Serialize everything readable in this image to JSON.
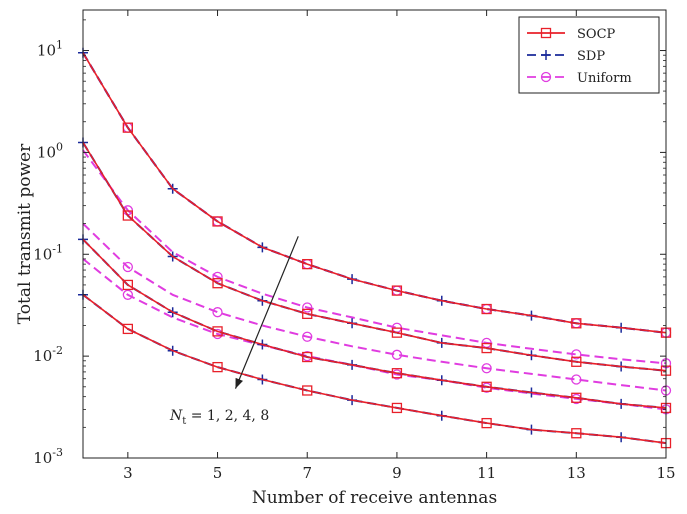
{
  "chart_data": {
    "type": "line",
    "xlabel": "Number of receive antennas",
    "ylabel": "Total transmit power",
    "xlim": [
      2,
      15
    ],
    "ylim": [
      0.001,
      25
    ],
    "yscale": "log",
    "grid": false,
    "legend_position": "top-right",
    "x": [
      2,
      3,
      4,
      5,
      6,
      7,
      8,
      9,
      10,
      11,
      12,
      13,
      14,
      15
    ],
    "x_tick_labels": [
      "3",
      "5",
      "7",
      "9",
      "11",
      "13",
      "15"
    ],
    "x_tick_values": [
      3,
      5,
      7,
      9,
      11,
      13,
      15
    ],
    "y_tick_labels": [
      {
        "base": "10",
        "exp": "1",
        "value": 10
      },
      {
        "base": "10",
        "exp": "0",
        "value": 1
      },
      {
        "base": "10",
        "exp": "-1",
        "value": 0.1
      },
      {
        "base": "10",
        "exp": "-2",
        "value": 0.01
      },
      {
        "base": "10",
        "exp": "-3",
        "value": 0.001
      }
    ],
    "legend": [
      {
        "name": "SOCP",
        "color": "#e8202a",
        "dash": "solid",
        "marker": "square"
      },
      {
        "name": "SDP",
        "color": "#1a2a9a",
        "dash": "dashed",
        "marker": "plus"
      },
      {
        "name": "Uniform",
        "color": "#e03ce0",
        "dash": "dashed",
        "marker": "circle"
      }
    ],
    "series": [
      {
        "method": "SOCP",
        "nt": 1,
        "values": [
          9.5,
          1.75,
          0.44,
          0.21,
          0.117,
          0.08,
          0.057,
          0.044,
          0.035,
          0.029,
          0.025,
          0.021,
          0.019,
          0.017
        ]
      },
      {
        "method": "SDP",
        "nt": 1,
        "values": [
          9.5,
          1.75,
          0.44,
          0.21,
          0.117,
          0.08,
          0.057,
          0.044,
          0.035,
          0.029,
          0.025,
          0.021,
          0.019,
          0.017
        ]
      },
      {
        "method": "Uniform",
        "nt": 1,
        "values": [
          9.5,
          1.75,
          0.44,
          0.21,
          0.117,
          0.08,
          0.057,
          0.044,
          0.035,
          0.029,
          0.025,
          0.021,
          0.019,
          0.017
        ]
      },
      {
        "method": "SOCP",
        "nt": 2,
        "values": [
          1.25,
          0.24,
          0.095,
          0.052,
          0.035,
          0.026,
          0.021,
          0.017,
          0.0135,
          0.012,
          0.0102,
          0.0088,
          0.0079,
          0.0072
        ]
      },
      {
        "method": "SDP",
        "nt": 2,
        "values": [
          1.25,
          0.24,
          0.095,
          0.052,
          0.035,
          0.026,
          0.021,
          0.017,
          0.0135,
          0.012,
          0.0102,
          0.0088,
          0.0079,
          0.0072
        ]
      },
      {
        "method": "Uniform",
        "nt": 2,
        "values": [
          1.05,
          0.27,
          0.105,
          0.06,
          0.041,
          0.03,
          0.024,
          0.019,
          0.016,
          0.0135,
          0.0118,
          0.0104,
          0.0093,
          0.0085
        ]
      },
      {
        "method": "SOCP",
        "nt": 4,
        "values": [
          0.14,
          0.05,
          0.027,
          0.0175,
          0.013,
          0.0098,
          0.0082,
          0.0068,
          0.0058,
          0.005,
          0.0044,
          0.0039,
          0.0034,
          0.0031
        ]
      },
      {
        "method": "SDP",
        "nt": 4,
        "values": [
          0.14,
          0.05,
          0.027,
          0.0175,
          0.013,
          0.0098,
          0.0082,
          0.0068,
          0.0058,
          0.005,
          0.0044,
          0.0039,
          0.0034,
          0.0031
        ]
      },
      {
        "method": "Uniform",
        "nt": 4,
        "values": [
          0.2,
          0.075,
          0.04,
          0.027,
          0.02,
          0.0155,
          0.0125,
          0.0103,
          0.0088,
          0.0076,
          0.0067,
          0.0059,
          0.0052,
          0.0046
        ]
      },
      {
        "method": "SOCP",
        "nt": 8,
        "values": [
          0.04,
          0.0185,
          0.0113,
          0.0078,
          0.0059,
          0.0046,
          0.0037,
          0.0031,
          0.0026,
          0.0022,
          0.0019,
          0.00175,
          0.0016,
          0.0014
        ]
      },
      {
        "method": "SDP",
        "nt": 8,
        "values": [
          0.04,
          0.0185,
          0.0113,
          0.0078,
          0.0059,
          0.0046,
          0.0037,
          0.0031,
          0.0026,
          0.0022,
          0.0019,
          0.00175,
          0.0016,
          0.0014
        ]
      },
      {
        "method": "Uniform",
        "nt": 8,
        "values": [
          0.09,
          0.04,
          0.024,
          0.0165,
          0.0128,
          0.01,
          0.0082,
          0.0066,
          0.0058,
          0.0049,
          0.0043,
          0.0038,
          0.0034,
          0.003
        ]
      }
    ],
    "annotation": {
      "base": "N",
      "sub": "t",
      "text": " = 1, 2, 4, 8",
      "arrow_from": [
        6.8,
        0.15
      ],
      "arrow_to": [
        5.4,
        0.0048
      ]
    }
  }
}
